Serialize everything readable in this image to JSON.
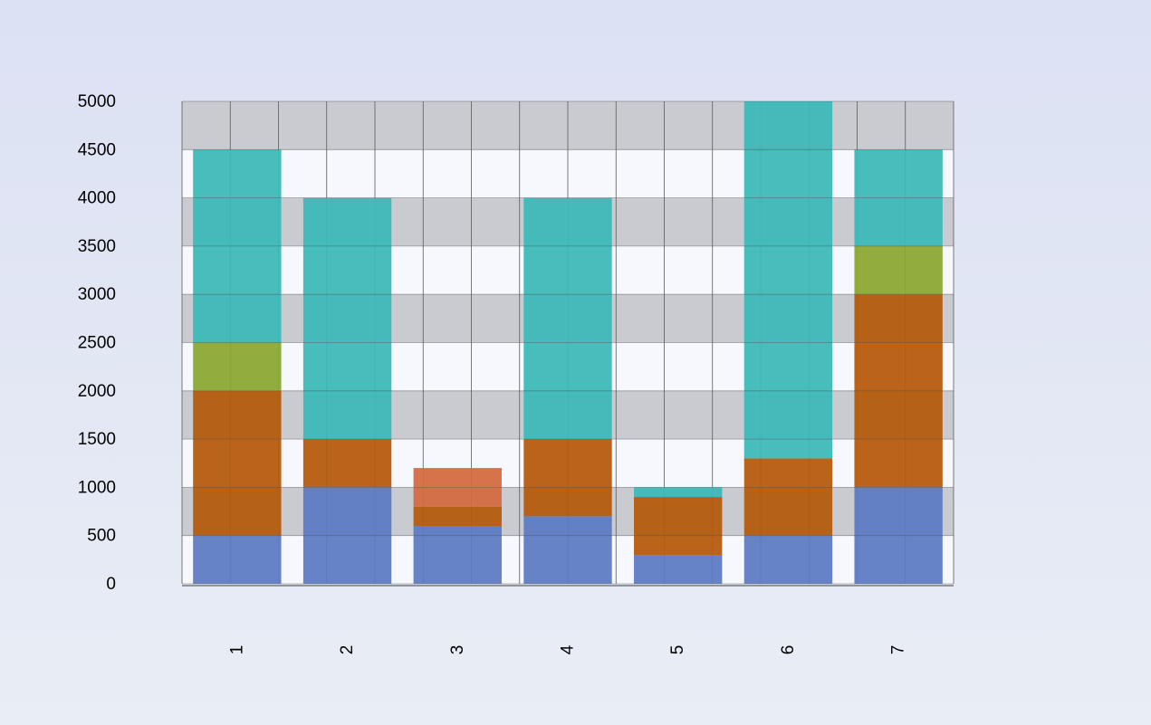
{
  "chart_data": {
    "type": "bar",
    "stacked": true,
    "categories": [
      "1",
      "2",
      "3",
      "4",
      "5",
      "6",
      "7"
    ],
    "ylim": [
      0,
      5000
    ],
    "ytick_step": 500,
    "grid": true,
    "colors": {
      "blue": "#5e7bc4",
      "orange": "#b55a0c",
      "olive": "#8aa832",
      "teal": "#3cb9b8",
      "coral": "#d46a40",
      "band_gray": "#c9cbd1",
      "band_white": "#f6f8fd"
    },
    "segments": [
      [
        {
          "color": "blue",
          "v": 500
        },
        {
          "color": "orange",
          "v": 1500
        },
        {
          "color": "olive",
          "v": 500
        },
        {
          "color": "teal",
          "v": 2000
        }
      ],
      [
        {
          "color": "blue",
          "v": 1000
        },
        {
          "color": "orange",
          "v": 500
        },
        {
          "color": "teal",
          "v": 2500
        }
      ],
      [
        {
          "color": "blue",
          "v": 600
        },
        {
          "color": "orange",
          "v": 200
        },
        {
          "color": "coral",
          "v": 400
        }
      ],
      [
        {
          "color": "blue",
          "v": 700
        },
        {
          "color": "orange",
          "v": 800
        },
        {
          "color": "teal",
          "v": 2500
        }
      ],
      [
        {
          "color": "blue",
          "v": 300
        },
        {
          "color": "orange",
          "v": 600
        },
        {
          "color": "teal",
          "v": 100
        }
      ],
      [
        {
          "color": "blue",
          "v": 500
        },
        {
          "color": "orange",
          "v": 800
        },
        {
          "color": "teal",
          "v": 3700
        }
      ],
      [
        {
          "color": "blue",
          "v": 1000
        },
        {
          "color": "orange",
          "v": 2000
        },
        {
          "color": "olive",
          "v": 500
        },
        {
          "color": "teal",
          "v": 1000
        }
      ]
    ]
  }
}
